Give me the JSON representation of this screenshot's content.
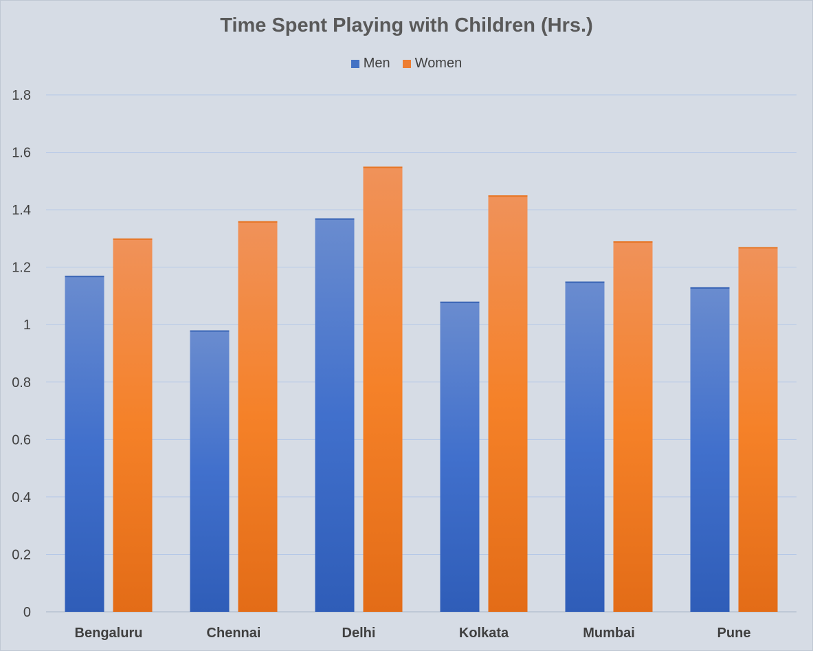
{
  "chart_data": {
    "type": "bar",
    "title": "Time Spent Playing with Children (Hrs.)",
    "categories": [
      "Bengaluru",
      "Chennai",
      "Delhi",
      "Kolkata",
      "Mumbai",
      "Pune"
    ],
    "series": [
      {
        "name": "Men",
        "values": [
          1.17,
          0.98,
          1.37,
          1.08,
          1.15,
          1.13
        ],
        "color": "#4472c4"
      },
      {
        "name": "Women",
        "values": [
          1.3,
          1.36,
          1.55,
          1.45,
          1.29,
          1.27
        ],
        "color": "#ed7d31"
      }
    ],
    "ylim": [
      0,
      1.8
    ],
    "yticks": [
      "0",
      "0.2",
      "0.4",
      "0.6",
      "0.8",
      "1",
      "1.2",
      "1.4",
      "1.6",
      "1.8"
    ],
    "grid": true,
    "legend_position": "top"
  }
}
